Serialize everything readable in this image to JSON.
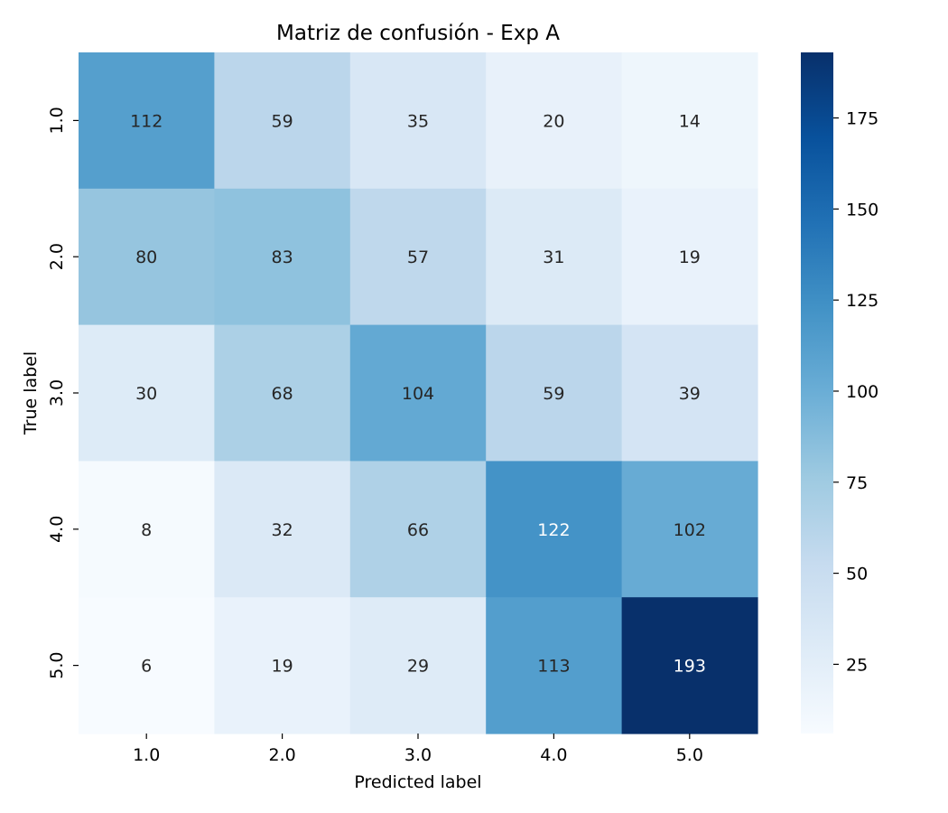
{
  "chart_data": {
    "type": "heatmap",
    "title": "Matriz de confusión - Exp A",
    "xlabel": "Predicted label",
    "ylabel": "True label",
    "x_categories": [
      "1.0",
      "2.0",
      "3.0",
      "4.0",
      "5.0"
    ],
    "y_categories": [
      "1.0",
      "2.0",
      "3.0",
      "4.0",
      "5.0"
    ],
    "values": [
      [
        112,
        59,
        35,
        20,
        14
      ],
      [
        80,
        83,
        57,
        31,
        19
      ],
      [
        30,
        68,
        104,
        59,
        39
      ],
      [
        8,
        32,
        66,
        122,
        102
      ],
      [
        6,
        19,
        29,
        113,
        193
      ]
    ],
    "colormap": "Blues",
    "color_range": [
      6,
      193
    ],
    "colorbar_ticks": [
      "25",
      "50",
      "75",
      "100",
      "125",
      "150",
      "175"
    ],
    "text_color_light": "#ffffff",
    "text_color_dark": "#262626"
  }
}
